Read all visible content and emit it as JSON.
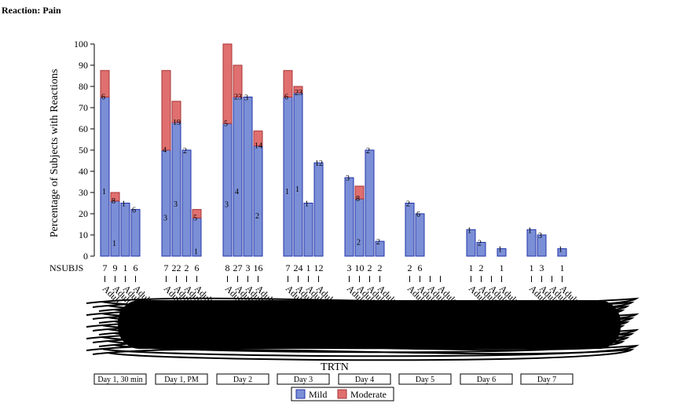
{
  "chart_data": {
    "type": "bar",
    "title": "Reaction: Pain",
    "ylabel": "Percentage of Subjects with Reactions",
    "xlabel": "TRTN",
    "ylim": [
      0,
      100
    ],
    "yticks": [
      0,
      10,
      20,
      30,
      40,
      50,
      60,
      70,
      80,
      90,
      100
    ],
    "nsubjs_label": "NSUBJS",
    "group_tick_label": "Adult",
    "groups": [
      "Day 1, 30 min",
      "Day 1, PM",
      "Day 2",
      "Day 3",
      "Day 4",
      "Day 5",
      "Day 6",
      "Day 7"
    ],
    "series": [
      {
        "name": "Mild",
        "color": "#7b8fd6",
        "edge": "#2233aa"
      },
      {
        "name": "Moderate",
        "color": "#e07070",
        "edge": "#aa3333"
      }
    ],
    "legend_position": "bottom",
    "bars": [
      [
        {
          "mild": 75,
          "moderate": 12.5,
          "n": "7",
          "labels": [
            "1",
            "6"
          ]
        },
        {
          "mild": 26,
          "moderate": 4,
          "n": "9",
          "labels": [
            "1",
            "8"
          ]
        },
        {
          "mild": 25,
          "moderate": 0,
          "n": "1",
          "labels": [
            "1"
          ]
        },
        {
          "mild": 22,
          "moderate": 0,
          "n": "6",
          "labels": [
            "6"
          ]
        }
      ],
      [
        {
          "mild": 50,
          "moderate": 37.5,
          "n": "7",
          "labels": [
            "3",
            "4"
          ]
        },
        {
          "mild": 63,
          "moderate": 10,
          "n": "22",
          "labels": [
            "3",
            "19"
          ]
        },
        {
          "mild": 50,
          "moderate": 0,
          "n": "2",
          "labels": [
            "2"
          ]
        },
        {
          "mild": 18,
          "moderate": 4,
          "n": "6",
          "labels": [
            "1",
            "5"
          ]
        }
      ],
      [
        {
          "mild": 62.5,
          "moderate": 37.5,
          "n": "8",
          "labels": [
            "3",
            "5"
          ]
        },
        {
          "mild": 75,
          "moderate": 15,
          "n": "27",
          "labels": [
            "4",
            "23"
          ]
        },
        {
          "mild": 75,
          "moderate": 0,
          "n": "3",
          "labels": [
            "3"
          ]
        },
        {
          "mild": 52,
          "moderate": 7,
          "n": "16",
          "labels": [
            "2",
            "14"
          ]
        }
      ],
      [
        {
          "mild": 75,
          "moderate": 12.5,
          "n": "7",
          "labels": [
            "1",
            "6"
          ]
        },
        {
          "mild": 77,
          "moderate": 3,
          "n": "24",
          "labels": [
            "1",
            "23"
          ]
        },
        {
          "mild": 25,
          "moderate": 0,
          "n": "1",
          "labels": [
            "1"
          ]
        },
        {
          "mild": 44,
          "moderate": 0,
          "n": "12",
          "labels": [
            "12"
          ]
        }
      ],
      [
        {
          "mild": 37,
          "moderate": 0,
          "n": "3",
          "labels": [
            "3"
          ]
        },
        {
          "mild": 27,
          "moderate": 6,
          "n": "10",
          "labels": [
            "2",
            "8"
          ]
        },
        {
          "mild": 50,
          "moderate": 0,
          "n": "2",
          "labels": [
            "2"
          ]
        },
        {
          "mild": 7,
          "moderate": 0,
          "n": "2",
          "labels": [
            "2"
          ]
        }
      ],
      [
        {
          "mild": 25,
          "moderate": 0,
          "n": "2",
          "labels": [
            "2"
          ]
        },
        {
          "mild": 20,
          "moderate": 0,
          "n": "6",
          "labels": [
            "6"
          ]
        },
        {
          "mild": 0,
          "moderate": 0,
          "n": "",
          "labels": []
        },
        {
          "mild": 0,
          "moderate": 0,
          "n": "",
          "labels": []
        }
      ],
      [
        {
          "mild": 12.5,
          "moderate": 0,
          "n": "1",
          "labels": [
            "1"
          ]
        },
        {
          "mild": 6.5,
          "moderate": 0,
          "n": "2",
          "labels": [
            "2"
          ]
        },
        {
          "mild": 0,
          "moderate": 0,
          "n": "",
          "labels": []
        },
        {
          "mild": 3.5,
          "moderate": 0,
          "n": "1",
          "labels": [
            "1"
          ]
        }
      ],
      [
        {
          "mild": 12.5,
          "moderate": 0,
          "n": "1",
          "labels": [
            "1"
          ]
        },
        {
          "mild": 10,
          "moderate": 0,
          "n": "3",
          "labels": [
            "3"
          ]
        },
        {
          "mild": 0,
          "moderate": 0,
          "n": "",
          "labels": []
        },
        {
          "mild": 3.5,
          "moderate": 0,
          "n": "1",
          "labels": [
            "1"
          ]
        }
      ]
    ]
  }
}
